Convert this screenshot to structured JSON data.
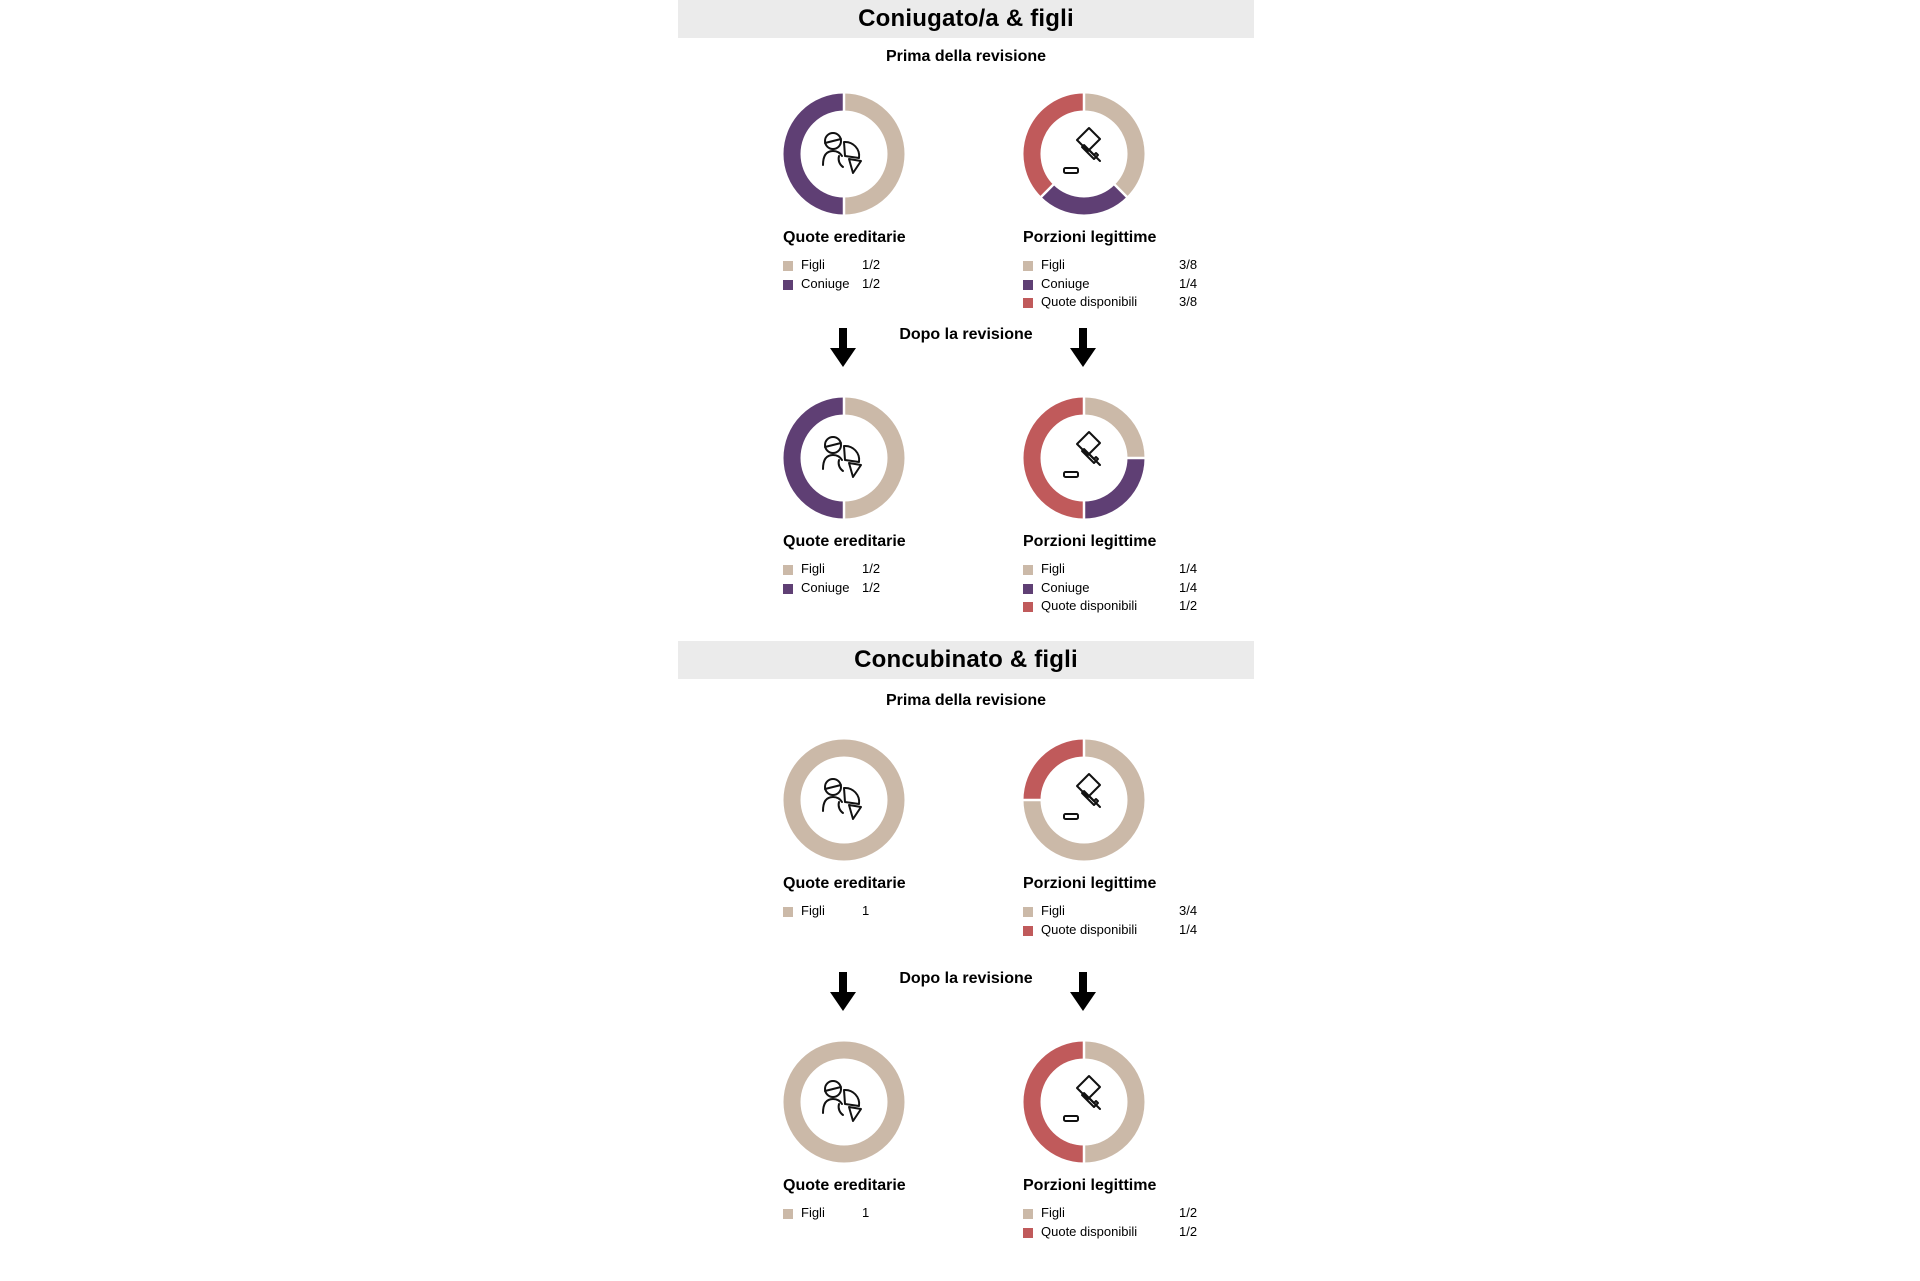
{
  "colors": {
    "figli": "#cbb9a8",
    "coniuge": "#5f3f74",
    "disponibili": "#c05a5b",
    "header_bg": "#ebebeb"
  },
  "sections": [
    {
      "title": "Coniugato/a & figli",
      "before_label": "Prima della revisione",
      "after_label": "Dopo la revisione"
    },
    {
      "title": "Concubinato & figli",
      "before_label": "Prima della revisione",
      "after_label": "Dopo la revisione"
    }
  ],
  "chart_data": [
    {
      "type": "pie",
      "section": "Coniugato/a & figli",
      "phase": "Prima della revisione",
      "title": "Quote ereditarie",
      "icon": "inheritance-icon",
      "slices": [
        {
          "label": "Figli",
          "value": 0.5,
          "value_label": "1/2",
          "color": "#cbb9a8"
        },
        {
          "label": "Coniuge",
          "value": 0.5,
          "value_label": "1/2",
          "color": "#5f3f74"
        }
      ]
    },
    {
      "type": "pie",
      "section": "Coniugato/a & figli",
      "phase": "Prima della revisione",
      "title": "Porzioni legittime",
      "icon": "gavel-icon",
      "slices": [
        {
          "label": "Figli",
          "value": 0.375,
          "value_label": "3/8",
          "color": "#cbb9a8"
        },
        {
          "label": "Coniuge",
          "value": 0.25,
          "value_label": "1/4",
          "color": "#5f3f74"
        },
        {
          "label": "Quote disponibili",
          "value": 0.375,
          "value_label": "3/8",
          "color": "#c05a5b"
        }
      ]
    },
    {
      "type": "pie",
      "section": "Coniugato/a & figli",
      "phase": "Dopo la revisione",
      "title": "Quote ereditarie",
      "icon": "inheritance-icon",
      "slices": [
        {
          "label": "Figli",
          "value": 0.5,
          "value_label": "1/2",
          "color": "#cbb9a8"
        },
        {
          "label": "Coniuge",
          "value": 0.5,
          "value_label": "1/2",
          "color": "#5f3f74"
        }
      ]
    },
    {
      "type": "pie",
      "section": "Coniugato/a & figli",
      "phase": "Dopo la revisione",
      "title": "Porzioni legittime",
      "icon": "gavel-icon",
      "slices": [
        {
          "label": "Figli",
          "value": 0.25,
          "value_label": "1/4",
          "color": "#cbb9a8"
        },
        {
          "label": "Coniuge",
          "value": 0.25,
          "value_label": "1/4",
          "color": "#5f3f74"
        },
        {
          "label": "Quote disponibili",
          "value": 0.5,
          "value_label": "1/2",
          "color": "#c05a5b"
        }
      ]
    },
    {
      "type": "pie",
      "section": "Concubinato & figli",
      "phase": "Prima della revisione",
      "title": "Quote ereditarie",
      "icon": "inheritance-icon",
      "slices": [
        {
          "label": "Figli",
          "value": 1,
          "value_label": "1",
          "color": "#cbb9a8"
        }
      ]
    },
    {
      "type": "pie",
      "section": "Concubinato & figli",
      "phase": "Prima della revisione",
      "title": "Porzioni legittime",
      "icon": "gavel-icon",
      "slices": [
        {
          "label": "Figli",
          "value": 0.75,
          "value_label": "3/4",
          "color": "#cbb9a8"
        },
        {
          "label": "Quote disponibili",
          "value": 0.25,
          "value_label": "1/4",
          "color": "#c05a5b"
        }
      ]
    },
    {
      "type": "pie",
      "section": "Concubinato & figli",
      "phase": "Dopo la revisione",
      "title": "Quote ereditarie",
      "icon": "inheritance-icon",
      "slices": [
        {
          "label": "Figli",
          "value": 1,
          "value_label": "1",
          "color": "#cbb9a8"
        }
      ]
    },
    {
      "type": "pie",
      "section": "Concubinato & figli",
      "phase": "Dopo la revisione",
      "title": "Porzioni legittime",
      "icon": "gavel-icon",
      "slices": [
        {
          "label": "Figli",
          "value": 0.5,
          "value_label": "1/2",
          "color": "#cbb9a8"
        },
        {
          "label": "Quote disponibili",
          "value": 0.5,
          "value_label": "1/2",
          "color": "#c05a5b"
        }
      ]
    }
  ]
}
